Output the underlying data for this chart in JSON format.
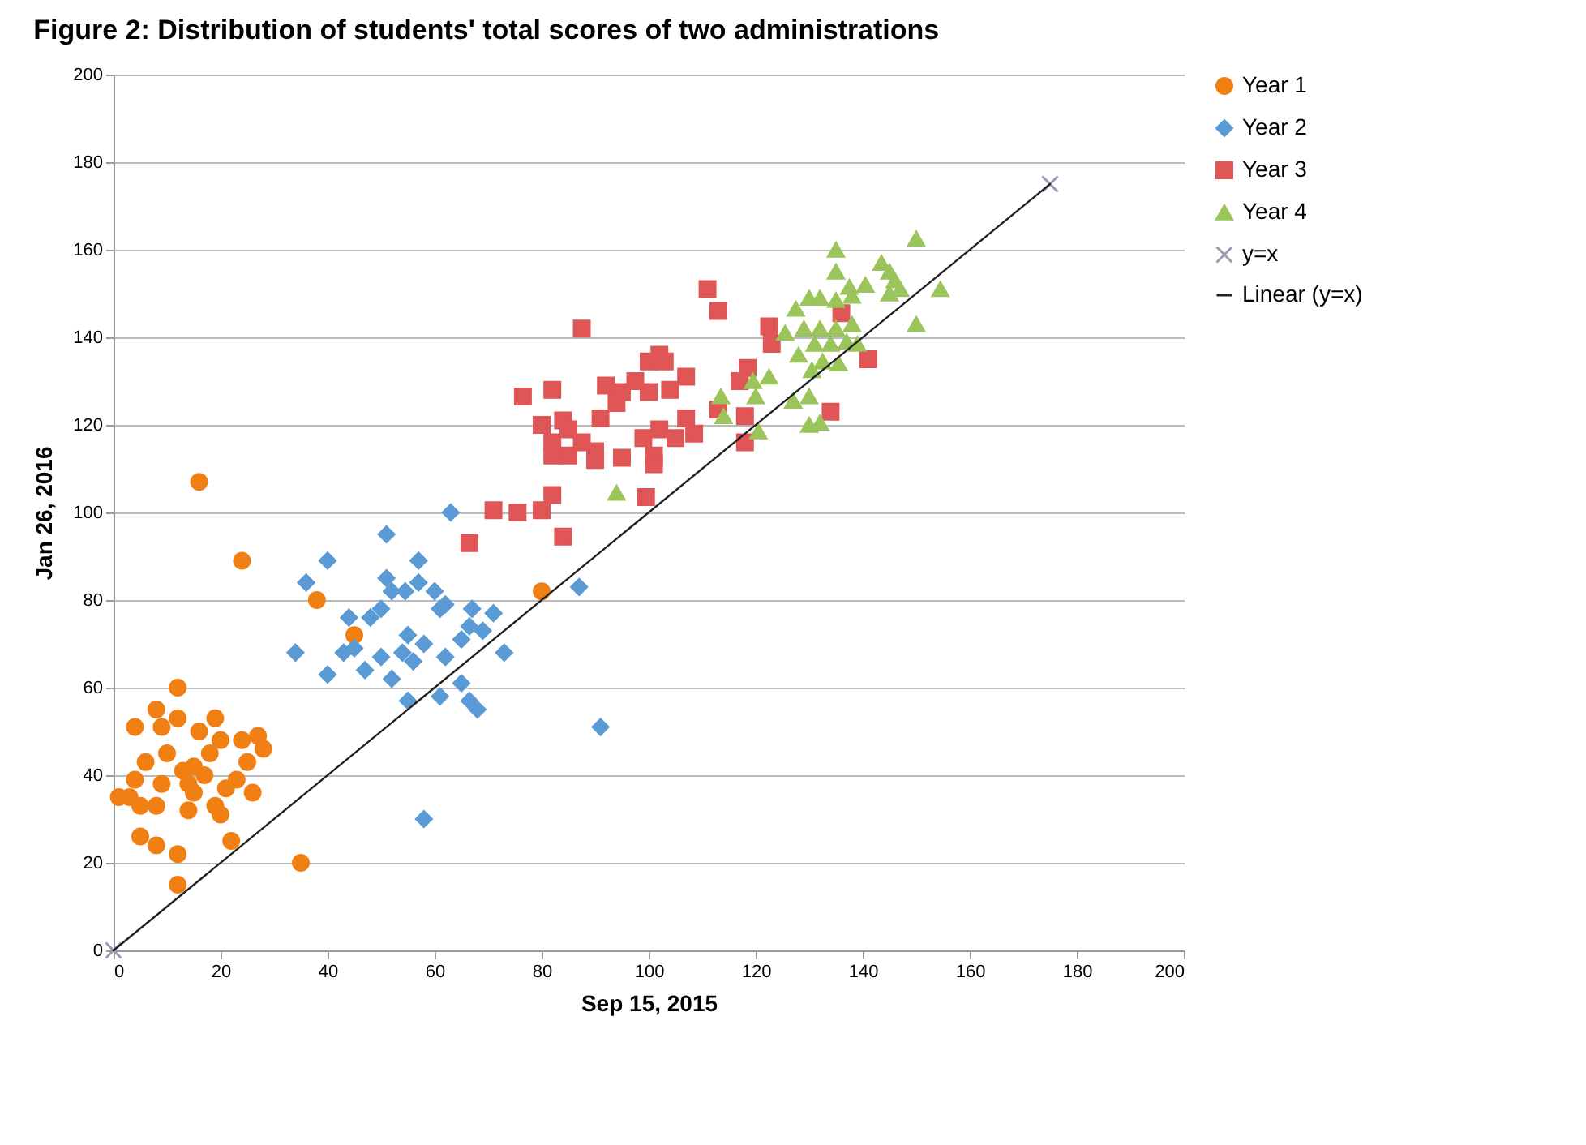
{
  "chart_data": {
    "type": "scatter",
    "title": "Figure 2: Distribution of students' total scores of two administrations",
    "xlabel": "Sep 15, 2015",
    "ylabel": "Jan 26, 2016",
    "xlim": [
      0,
      200
    ],
    "xticks": [
      0,
      20,
      40,
      60,
      80,
      100,
      120,
      140,
      160,
      180,
      200
    ],
    "ylim": [
      0,
      200
    ],
    "yticks": [
      0,
      20,
      40,
      60,
      80,
      100,
      120,
      140,
      160,
      180,
      200
    ],
    "grid": "y",
    "legend": "right",
    "series": [
      {
        "name": "Year 1",
        "color": "#f07f14",
        "marker": "circle",
        "x": [
          16,
          24,
          38,
          45,
          80,
          35,
          12,
          22,
          8,
          12,
          5,
          1,
          3,
          5,
          8,
          4,
          6,
          4,
          8,
          9,
          12,
          12,
          10,
          13,
          14,
          15,
          18,
          19,
          17,
          19,
          20,
          21,
          24,
          25,
          27,
          28,
          26,
          15,
          16,
          20,
          23,
          9,
          14
        ],
        "values": [
          107,
          89,
          80,
          72,
          82,
          20,
          15,
          25,
          24,
          22,
          26,
          35,
          35,
          33,
          33,
          39,
          43,
          51,
          55,
          51,
          60,
          53,
          45,
          41,
          38,
          36,
          45,
          53,
          40,
          33,
          31,
          37,
          48,
          43,
          49,
          46,
          36,
          42,
          50,
          48,
          39,
          38,
          32
        ]
      },
      {
        "name": "Year 2",
        "color": "#5b9bd5",
        "marker": "diamond",
        "x": [
          63,
          51,
          40,
          36,
          34,
          40,
          43,
          45,
          44,
          48,
          50,
          51,
          52,
          54.5,
          57,
          57,
          60,
          61,
          62,
          55,
          58,
          54,
          56,
          50,
          47,
          52,
          62,
          55,
          61,
          65,
          66.5,
          68,
          65,
          66.5,
          67,
          69,
          71,
          73,
          58,
          87,
          91
        ],
        "values": [
          100,
          95,
          89,
          84,
          68,
          63,
          68,
          69,
          76,
          76,
          78,
          85,
          82,
          82,
          89,
          84,
          82,
          78,
          79,
          72,
          70,
          68,
          66,
          67,
          64,
          62,
          67,
          57,
          58,
          61,
          57,
          55,
          71,
          74,
          78,
          73,
          77,
          68,
          30,
          83,
          51
        ]
      },
      {
        "name": "Year 3",
        "color": "#e05555",
        "marker": "square",
        "x": [
          111,
          113,
          87.5,
          122.5,
          123,
          76.5,
          82,
          92,
          95,
          97.5,
          100,
          102,
          103,
          100,
          104,
          107,
          94,
          91,
          80,
          84,
          85,
          82,
          82,
          85,
          87.5,
          90,
          90,
          95,
          99,
          102,
          105,
          107,
          108.5,
          101,
          101,
          113,
          118,
          118,
          117,
          82,
          99.5,
          80,
          75.5,
          71,
          84,
          66.5,
          141,
          136,
          134,
          118.5
        ],
        "values": [
          151,
          146,
          142,
          142.5,
          138.5,
          126.5,
          128,
          129,
          127.5,
          130,
          134.5,
          136,
          134.5,
          127.5,
          128,
          131,
          125,
          121.5,
          120,
          121,
          119,
          116,
          113,
          113,
          116,
          114,
          112,
          112.5,
          117,
          119,
          117,
          121.5,
          118,
          113,
          111,
          123.5,
          122,
          116,
          130,
          104,
          103.5,
          100.5,
          100,
          100.5,
          94.5,
          93,
          135,
          145.5,
          123,
          133
        ]
      },
      {
        "name": "Year 4",
        "color": "#9bc45a",
        "marker": "triangle",
        "x": [
          135,
          150,
          135,
          143.5,
          145,
          146,
          140.5,
          137.5,
          138,
          135,
          132,
          130,
          127.5,
          145,
          147,
          154.5,
          150,
          138,
          135,
          132,
          129,
          125.5,
          137,
          134,
          131,
          128,
          139,
          132.5,
          130.5,
          135.5,
          122.5,
          119.5,
          120,
          127,
          130,
          130,
          132,
          113.5,
          114,
          120.5,
          94
        ],
        "values": [
          160,
          162.5,
          155,
          157,
          155,
          153,
          152,
          151.5,
          149.5,
          148.5,
          149,
          149,
          146.5,
          150,
          151,
          151,
          143,
          143,
          142,
          142,
          142,
          141,
          139,
          138.5,
          138.5,
          136,
          138.5,
          134.5,
          132.5,
          134,
          131,
          130,
          126.5,
          125.5,
          126.5,
          120,
          120.5,
          126.5,
          122,
          118.5,
          104.5
        ]
      },
      {
        "name": "y=x",
        "color": "#9a9ab8",
        "marker": "cross",
        "x": [
          0,
          175
        ],
        "values": [
          0,
          175
        ]
      },
      {
        "name": "Linear (y=x)",
        "type": "line",
        "color": "#222222",
        "marker": "none",
        "x": [
          0,
          175
        ],
        "values": [
          0,
          175
        ]
      }
    ]
  }
}
